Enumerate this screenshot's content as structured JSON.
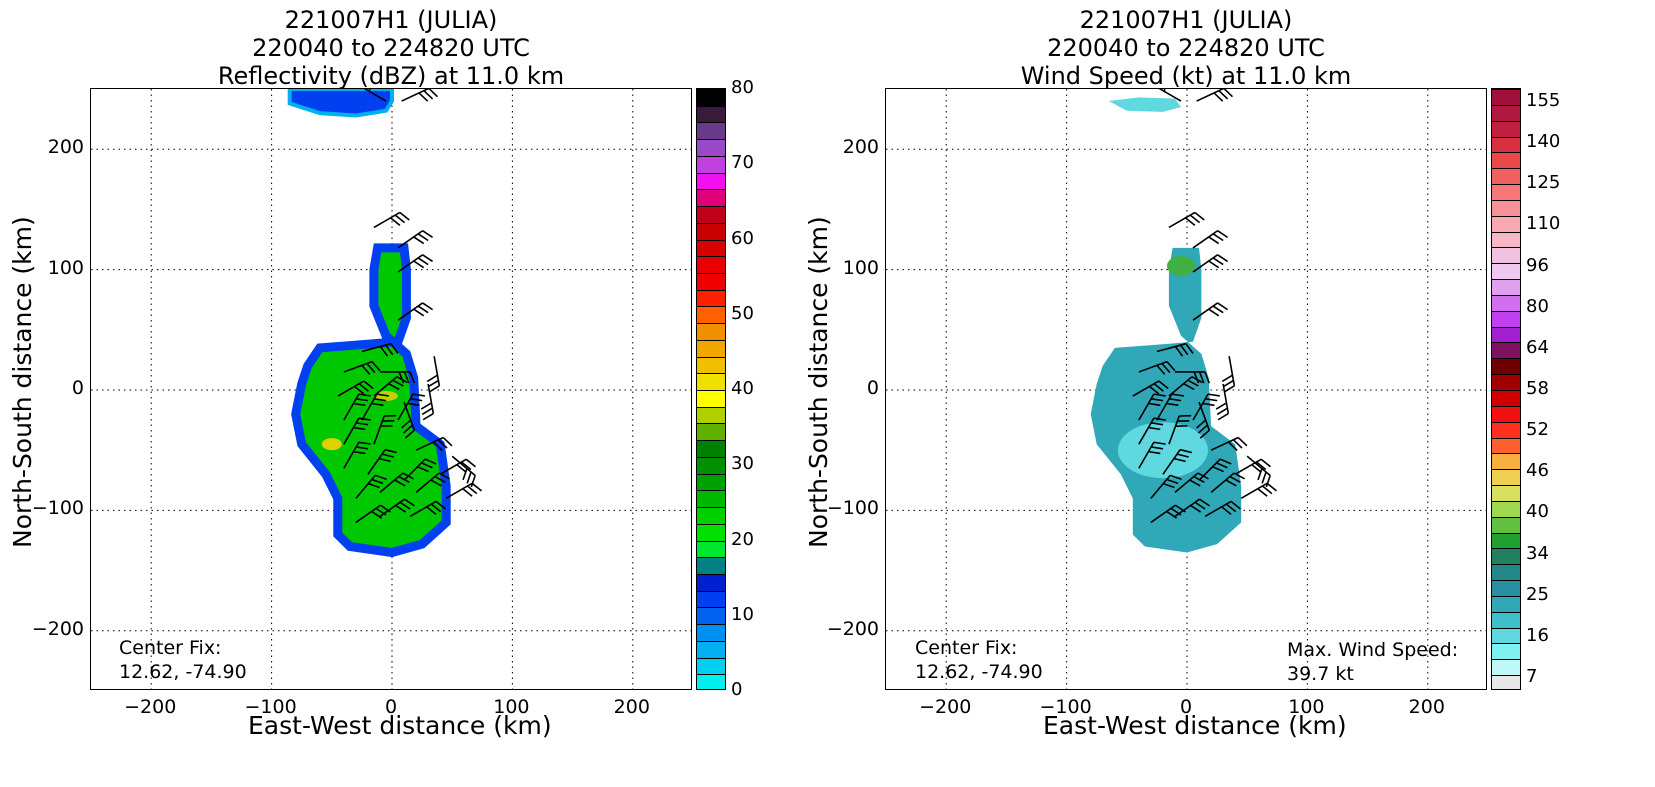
{
  "charts": [
    {
      "id": "refl",
      "title_lines": [
        "221007H1 (JULIA)",
        "220040 to 224820 UTC",
        "Reflectivity (dBZ) at 11.0 km"
      ],
      "xlabel": "East-West distance (km)",
      "ylabel": "North-South distance (km)",
      "annotation_left": [
        "Center Fix:",
        "12.62, -74.90"
      ],
      "annotation_right": [],
      "colorbar_labels": [
        "80",
        "70",
        "60",
        "50",
        "40",
        "30",
        "20",
        "10",
        "0"
      ],
      "colorbar_colors": [
        "#000000",
        "#3a1a3a",
        "#6a3a8a",
        "#9a4ac8",
        "#c040e0",
        "#f010f0",
        "#e0007a",
        "#c0001a",
        "#c80000",
        "#d80000",
        "#e80000",
        "#f00000",
        "#ff2000",
        "#ff6000",
        "#f09000",
        "#f0a800",
        "#f0c000",
        "#f0e000",
        "#ffff00",
        "#b0d000",
        "#60b000",
        "#008000",
        "#009000",
        "#00a000",
        "#00b800",
        "#00d000",
        "#00e000",
        "#00e830",
        "#008080",
        "#0020d0",
        "#0040f0",
        "#0060f0",
        "#0090f0",
        "#00b0f0",
        "#00d0f0",
        "#00f0f0"
      ]
    },
    {
      "id": "wind",
      "title_lines": [
        "221007H1 (JULIA)",
        "220040 to 224820 UTC",
        "Wind Speed (kt) at 11.0 km"
      ],
      "xlabel": "East-West distance (km)",
      "ylabel": "North-South distance (km)",
      "annotation_left": [
        "Center Fix:",
        "12.62, -74.90"
      ],
      "annotation_right": [
        "Max. Wind Speed:",
        "39.7 kt"
      ],
      "colorbar_labels": [
        "155",
        "140",
        "125",
        "110",
        "96",
        "80",
        "64",
        "58",
        "52",
        "46",
        "40",
        "34",
        "25",
        "16",
        "7"
      ],
      "colorbar_colors": [
        "#a0103a",
        "#b01840",
        "#c02040",
        "#d83040",
        "#e84848",
        "#f06060",
        "#f87878",
        "#f89098",
        "#f8a8b0",
        "#f8b8c8",
        "#f0c0e0",
        "#f0c8f0",
        "#e0a0f0",
        "#d070f0",
        "#c040f0",
        "#a020d0",
        "#801060",
        "#700000",
        "#a00000",
        "#d00000",
        "#f01010",
        "#ff3020",
        "#ff6030",
        "#f8b040",
        "#f0d050",
        "#d8e060",
        "#a0d850",
        "#60c040",
        "#20a030",
        "#208060",
        "#208888",
        "#2890a0",
        "#30a8b8",
        "#40c0c8",
        "#60d8e0",
        "#80f0f0",
        "#c0f8f8",
        "#e8e8e8"
      ]
    }
  ],
  "chart_data": [
    {
      "type": "heatmap",
      "title": "221007H1 (JULIA) 220040 to 224820 UTC Reflectivity (dBZ) at 11.0 km",
      "xlabel": "East-West distance (km)",
      "ylabel": "North-South distance (km)",
      "xlim": [
        -250,
        250
      ],
      "ylim": [
        -250,
        250
      ],
      "xticks": [
        -200,
        -100,
        0,
        100,
        200
      ],
      "yticks": [
        -200,
        -100,
        0,
        100,
        200
      ],
      "grid": true,
      "colorbar": {
        "label": "dBZ",
        "ticks": [
          0,
          10,
          20,
          30,
          40,
          50,
          60,
          70,
          80
        ]
      },
      "annotation": "Center Fix: 12.62, -74.90"
    },
    {
      "type": "heatmap",
      "title": "221007H1 (JULIA) 220040 to 224820 UTC Wind Speed (kt) at 11.0 km",
      "xlabel": "East-West distance (km)",
      "ylabel": "North-South distance (km)",
      "xlim": [
        -250,
        250
      ],
      "ylim": [
        -250,
        250
      ],
      "xticks": [
        -200,
        -100,
        0,
        100,
        200
      ],
      "yticks": [
        -200,
        -100,
        0,
        100,
        200
      ],
      "grid": true,
      "colorbar": {
        "label": "kt",
        "ticks": [
          7,
          16,
          25,
          34,
          40,
          46,
          52,
          58,
          64,
          80,
          96,
          110,
          125,
          140,
          155
        ]
      },
      "annotation": "Center Fix: 12.62, -74.90",
      "max_wind_speed_kt": 39.7
    }
  ],
  "tick_labels": [
    "−200",
    "−100",
    "0",
    "100",
    "200"
  ]
}
